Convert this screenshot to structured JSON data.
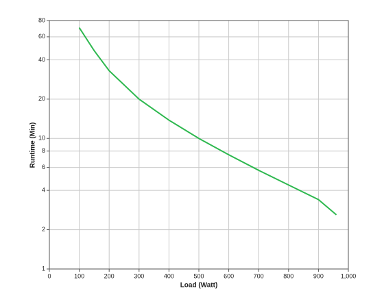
{
  "chart_data": {
    "type": "line",
    "x_label": "Load (Watt)",
    "y_label": "Runtime (Min)",
    "x": [
      100,
      150,
      200,
      300,
      400,
      500,
      600,
      700,
      800,
      900,
      960
    ],
    "series": [
      {
        "color": "#2eb84f",
        "values": [
          70.5,
          47,
          33,
          20,
          13.8,
          10,
          7.5,
          5.7,
          4.4,
          3.4,
          2.6
        ]
      }
    ],
    "xlim": [
      0,
      1000
    ],
    "xticks": [
      0,
      100,
      200,
      300,
      400,
      500,
      600,
      700,
      800,
      900,
      {
        "value": 1000,
        "label": "1,000"
      }
    ],
    "ylim": [
      1,
      80
    ],
    "yticks": [
      1,
      2,
      4,
      6,
      8,
      10,
      20,
      40,
      60,
      80
    ],
    "ylog": true,
    "grid": true
  }
}
